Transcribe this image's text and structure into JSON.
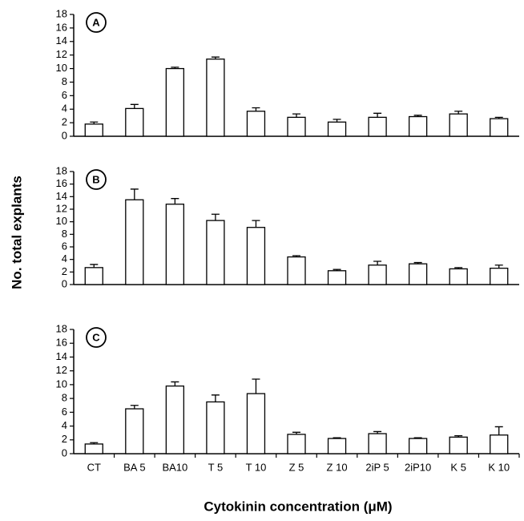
{
  "chart_data": [
    {
      "type": "bar",
      "title": "A",
      "values": [
        1.8,
        4.1,
        10.0,
        11.4,
        3.7,
        2.8,
        2.1,
        2.8,
        2.9,
        3.3,
        2.6
      ],
      "errors": [
        0.3,
        0.6,
        0.2,
        0.3,
        0.5,
        0.5,
        0.4,
        0.6,
        0.2,
        0.4,
        0.2
      ],
      "ylim": [
        0,
        18
      ],
      "yticks": [
        0,
        2,
        4,
        6,
        8,
        10,
        12,
        14,
        16,
        18
      ],
      "color": "#ffffff"
    },
    {
      "type": "bar",
      "title": "B",
      "ylabel": "No. total explants",
      "values": [
        2.7,
        13.5,
        12.8,
        10.2,
        9.1,
        4.4,
        2.2,
        3.1,
        3.3,
        2.5,
        2.6
      ],
      "errors": [
        0.5,
        1.7,
        0.9,
        1.0,
        1.1,
        0.2,
        0.2,
        0.6,
        0.2,
        0.2,
        0.5
      ],
      "ylim": [
        0,
        18
      ],
      "yticks": [
        0,
        2,
        4,
        6,
        8,
        10,
        12,
        14,
        16,
        18
      ],
      "color": "#ffffff"
    },
    {
      "type": "bar",
      "title": "C",
      "xlabel": "Cytokinin concentration (μM)",
      "categories": [
        "CT",
        "BA 5",
        "BA10",
        "T 5",
        "T 10",
        "Z 5",
        "Z 10",
        "2iP 5",
        "2iP10",
        "K 5",
        "K 10"
      ],
      "values": [
        1.4,
        6.5,
        9.8,
        7.5,
        8.7,
        2.8,
        2.2,
        2.9,
        2.2,
        2.4,
        2.7
      ],
      "errors": [
        0.2,
        0.5,
        0.6,
        1.0,
        2.1,
        0.3,
        0.1,
        0.3,
        0.1,
        0.2,
        1.2
      ],
      "ylim": [
        0,
        18
      ],
      "yticks": [
        0,
        2,
        4,
        6,
        8,
        10,
        12,
        14,
        16,
        18
      ],
      "color": "#ffffff"
    }
  ]
}
